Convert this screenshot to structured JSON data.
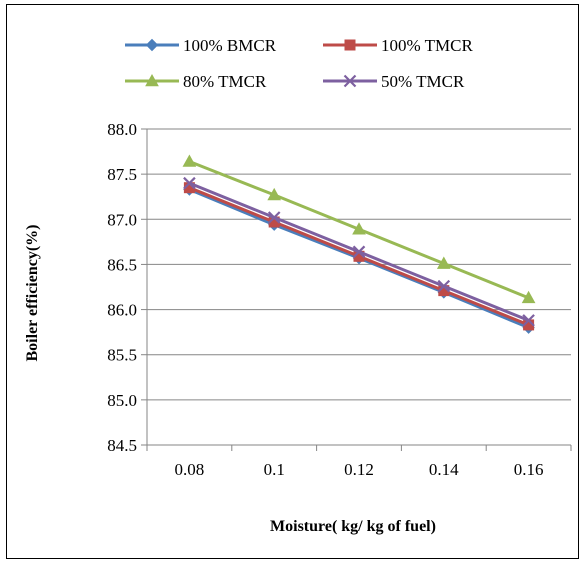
{
  "chart_data": {
    "type": "line",
    "title": "",
    "xlabel": "Moisture( kg/ kg of fuel)",
    "ylabel": "Boiler efficiency(%)",
    "categories": [
      "0.08",
      "0.1",
      "0.12",
      "0.14",
      "0.16"
    ],
    "ylim": [
      84.5,
      88.0
    ],
    "yticks": [
      "84.5",
      "85.0",
      "85.5",
      "86.0",
      "86.5",
      "87.0",
      "87.5",
      "88.0"
    ],
    "grid": "horizontal",
    "legend_position": "top",
    "series": [
      {
        "name": "100% BMCR",
        "color": "#4a7ebb",
        "marker": "diamond",
        "values": [
          87.33,
          86.94,
          86.57,
          86.19,
          85.8
        ]
      },
      {
        "name": "100% TMCR",
        "color": "#be4b48",
        "marker": "square",
        "values": [
          87.35,
          86.97,
          86.59,
          86.21,
          85.83
        ]
      },
      {
        "name": "80% TMCR",
        "color": "#98b954",
        "marker": "triangle",
        "values": [
          87.64,
          87.27,
          86.89,
          86.51,
          86.13
        ]
      },
      {
        "name": "50% TMCR",
        "color": "#7d60a0",
        "marker": "x",
        "values": [
          87.4,
          87.02,
          86.64,
          86.26,
          85.88
        ]
      }
    ]
  }
}
